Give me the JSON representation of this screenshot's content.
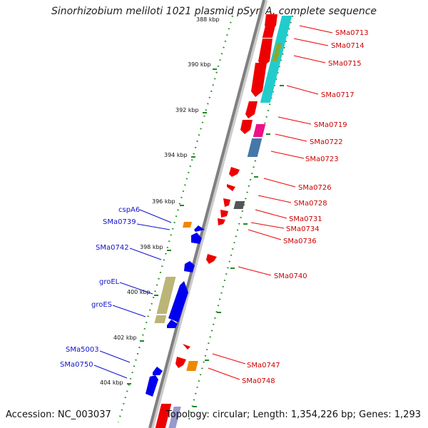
{
  "title": "Sinorhizobium meliloti 1021 plasmid pSymA, complete sequence",
  "footer": {
    "accession": "Accession: NC_003037",
    "summary": "Topology: circular; Length: 1,354,226 bp; Genes: 1,293"
  },
  "scale_labels": [
    "388 kbp",
    "390 kbp",
    "392 kbp",
    "394 kbp",
    "396 kbp",
    "398 kbp",
    "400 kbp",
    "402 kbp",
    "404 kbp"
  ],
  "right_genes": [
    "SMa0713",
    "SMa0714",
    "SMa0715",
    "SMa0717",
    "SMa0719",
    "SMa0722",
    "SMa0723",
    "SMa0726",
    "SMa0728",
    "SMa0731",
    "SMa0734",
    "SMa0736",
    "SMa0740",
    "SMa0747",
    "SMa0748"
  ],
  "left_genes": [
    "cspA6",
    "SMa0739",
    "SMa0742",
    "groEL",
    "groES",
    "SMa5003",
    "SMa0750"
  ],
  "colors": {
    "backbone": "#808080",
    "reverse_strand": "#ee0000",
    "forward_strand": "#0000ee",
    "right_label": "#cc0000",
    "left_label": "#1111cc",
    "scale_ticks": "#228822",
    "cyan_feature": "#22cccc",
    "olive_feature": "#bbb577",
    "orange_feature": "#ee8800",
    "magenta_feature": "#ee1188",
    "steelblue_feature": "#4477aa",
    "gray_feature": "#555555",
    "lavender_feature": "#9999cc"
  }
}
